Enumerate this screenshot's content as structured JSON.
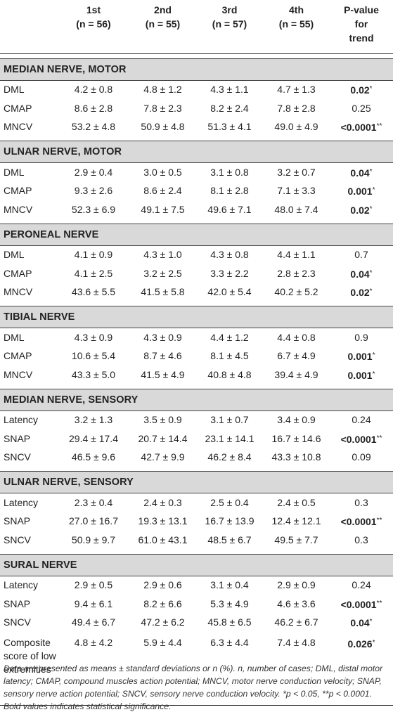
{
  "header": {
    "col0": "",
    "col1_line1": "1st",
    "col1_line2": "(n = 56)",
    "col2_line1": "2nd",
    "col2_line2": "(n = 55)",
    "col3_line1": "3rd",
    "col3_line2": "(n = 57)",
    "col4_line1": "4th",
    "col4_line2": "(n = 55)",
    "col5_line1": "P-value",
    "col5_line2": "for",
    "col5_line3": "trend"
  },
  "sections": [
    {
      "title": "MEDIAN NERVE, MOTOR",
      "rows": [
        {
          "label": "DML",
          "v": [
            "4.2 ± 0.8",
            "4.8 ± 1.2",
            "4.3 ± 1.1",
            "4.7 ± 1.3"
          ],
          "p": "0.02",
          "mark": "*",
          "bold": true
        },
        {
          "label": "CMAP",
          "v": [
            "8.6 ± 2.8",
            "7.8 ± 2.3",
            "8.2 ± 2.4",
            "7.8 ± 2.8"
          ],
          "p": "0.25",
          "mark": "",
          "bold": false
        },
        {
          "label": "MNCV",
          "v": [
            "53.2 ± 4.8",
            "50.9 ± 4.8",
            "51.3 ± 4.1",
            "49.0 ± 4.9"
          ],
          "p": "<0.0001",
          "mark": "**",
          "bold": true
        }
      ]
    },
    {
      "title": "ULNAR NERVE, MOTOR",
      "rows": [
        {
          "label": "DML",
          "v": [
            "2.9 ± 0.4",
            "3.0 ± 0.5",
            "3.1 ± 0.8",
            "3.2 ± 0.7"
          ],
          "p": "0.04",
          "mark": "*",
          "bold": true
        },
        {
          "label": "CMAP",
          "v": [
            "9.3 ± 2.6",
            "8.6 ± 2.4",
            "8.1 ± 2.8",
            "7.1 ± 3.3"
          ],
          "p": "0.001",
          "mark": "*",
          "bold": true
        },
        {
          "label": "MNCV",
          "v": [
            "52.3 ± 6.9",
            "49.1 ± 7.5",
            "49.6 ± 7.1",
            "48.0 ± 7.4"
          ],
          "p": "0.02",
          "mark": "*",
          "bold": true
        }
      ]
    },
    {
      "title": "PERONEAL NERVE",
      "rows": [
        {
          "label": "DML",
          "v": [
            "4.1 ± 0.9",
            "4.3 ± 1.0",
            "4.3 ± 0.8",
            "4.4 ± 1.1"
          ],
          "p": "0.7",
          "mark": "",
          "bold": false
        },
        {
          "label": "CMAP",
          "v": [
            "4.1 ± 2.5",
            "3.2 ± 2.5",
            "3.3 ± 2.2",
            "2.8 ± 2.3"
          ],
          "p": "0.04",
          "mark": "*",
          "bold": true
        },
        {
          "label": "MNCV",
          "v": [
            "43.6 ± 5.5",
            "41.5 ± 5.8",
            "42.0 ± 5.4",
            "40.2 ± 5.2"
          ],
          "p": "0.02",
          "mark": "*",
          "bold": true
        }
      ]
    },
    {
      "title": "TIBIAL NERVE",
      "rows": [
        {
          "label": "DML",
          "v": [
            "4.3 ± 0.9",
            "4.3 ± 0.9",
            "4.4 ± 1.2",
            "4.4 ± 0.8"
          ],
          "p": "0.9",
          "mark": "",
          "bold": false
        },
        {
          "label": "CMAP",
          "v": [
            "10.6 ± 5.4",
            "8.7 ± 4.6",
            "8.1 ± 4.5",
            "6.7 ± 4.9"
          ],
          "p": "0.001",
          "mark": "*",
          "bold": true
        },
        {
          "label": "MNCV",
          "v": [
            "43.3 ± 5.0",
            "41.5 ± 4.9",
            "40.8 ± 4.8",
            "39.4 ± 4.9"
          ],
          "p": "0.001",
          "mark": "*",
          "bold": true
        }
      ]
    },
    {
      "title": "MEDIAN NERVE, SENSORY",
      "rows": [
        {
          "label": "Latency",
          "v": [
            "3.2 ± 1.3",
            "3.5 ± 0.9",
            "3.1 ± 0.7",
            "3.4 ± 0.9"
          ],
          "p": "0.24",
          "mark": "",
          "bold": false
        },
        {
          "label": "SNAP",
          "v": [
            "29.4 ± 17.4",
            "20.7 ± 14.4",
            "23.1 ± 14.1",
            "16.7 ± 14.6"
          ],
          "p": "<0.0001",
          "mark": "**",
          "bold": true
        },
        {
          "label": "SNCV",
          "v": [
            "46.5 ± 9.6",
            "42.7 ± 9.9",
            "46.2 ± 8.4",
            "43.3 ± 10.8"
          ],
          "p": "0.09",
          "mark": "",
          "bold": false
        }
      ]
    },
    {
      "title": "ULNAR NERVE, SENSORY",
      "rows": [
        {
          "label": "Latency",
          "v": [
            "2.3 ± 0.4",
            "2.4 ± 0.3",
            "2.5 ± 0.4",
            "2.4 ± 0.5"
          ],
          "p": "0.3",
          "mark": "",
          "bold": false
        },
        {
          "label": "SNAP",
          "v": [
            "27.0 ± 16.7",
            "19.3 ± 13.1",
            "16.7 ± 13.9",
            "12.4 ± 12.1"
          ],
          "p": "<0.0001",
          "mark": "**",
          "bold": true
        },
        {
          "label": "SNCV",
          "v": [
            "50.9 ± 9.7",
            "61.0 ± 43.1",
            "48.5 ± 6.7",
            "49.5 ± 7.7"
          ],
          "p": "0.3",
          "mark": "",
          "bold": false
        }
      ]
    },
    {
      "title": "SURAL NERVE",
      "rows": [
        {
          "label": "Latency",
          "v": [
            "2.9 ± 0.5",
            "2.9 ± 0.6",
            "3.1 ± 0.4",
            "2.9 ± 0.9"
          ],
          "p": "0.24",
          "mark": "",
          "bold": false
        },
        {
          "label": "SNAP",
          "v": [
            "9.4 ± 6.1",
            "8.2 ± 6.6",
            "5.3 ± 4.9",
            "4.6 ± 3.6"
          ],
          "p": "<0.0001",
          "mark": "**",
          "bold": true
        },
        {
          "label": "SNCV",
          "v": [
            "49.4 ± 6.7",
            "47.2 ± 6.2",
            "45.8 ± 6.5",
            "46.2 ± 6.7"
          ],
          "p": "0.04",
          "mark": "*",
          "bold": true
        },
        {
          "label": "Composite score of low extremities",
          "v": [
            "4.8 ± 4.2",
            "5.9 ± 4.4",
            "6.3 ± 4.4",
            "7.4 ± 4.8"
          ],
          "p": "0.026",
          "mark": "*",
          "bold": true
        }
      ]
    }
  ],
  "footnote": "Data are presented as means ± standard deviations or n (%). n, number of cases; DML, distal motor latency; CMAP, compound muscles action potential; MNCV, motor nerve conduction velocity; SNAP, sensory nerve action potential; SNCV, sensory nerve conduction velocity. *p < 0.05, **p < 0.0001. Bold values indicates statistical significance."
}
